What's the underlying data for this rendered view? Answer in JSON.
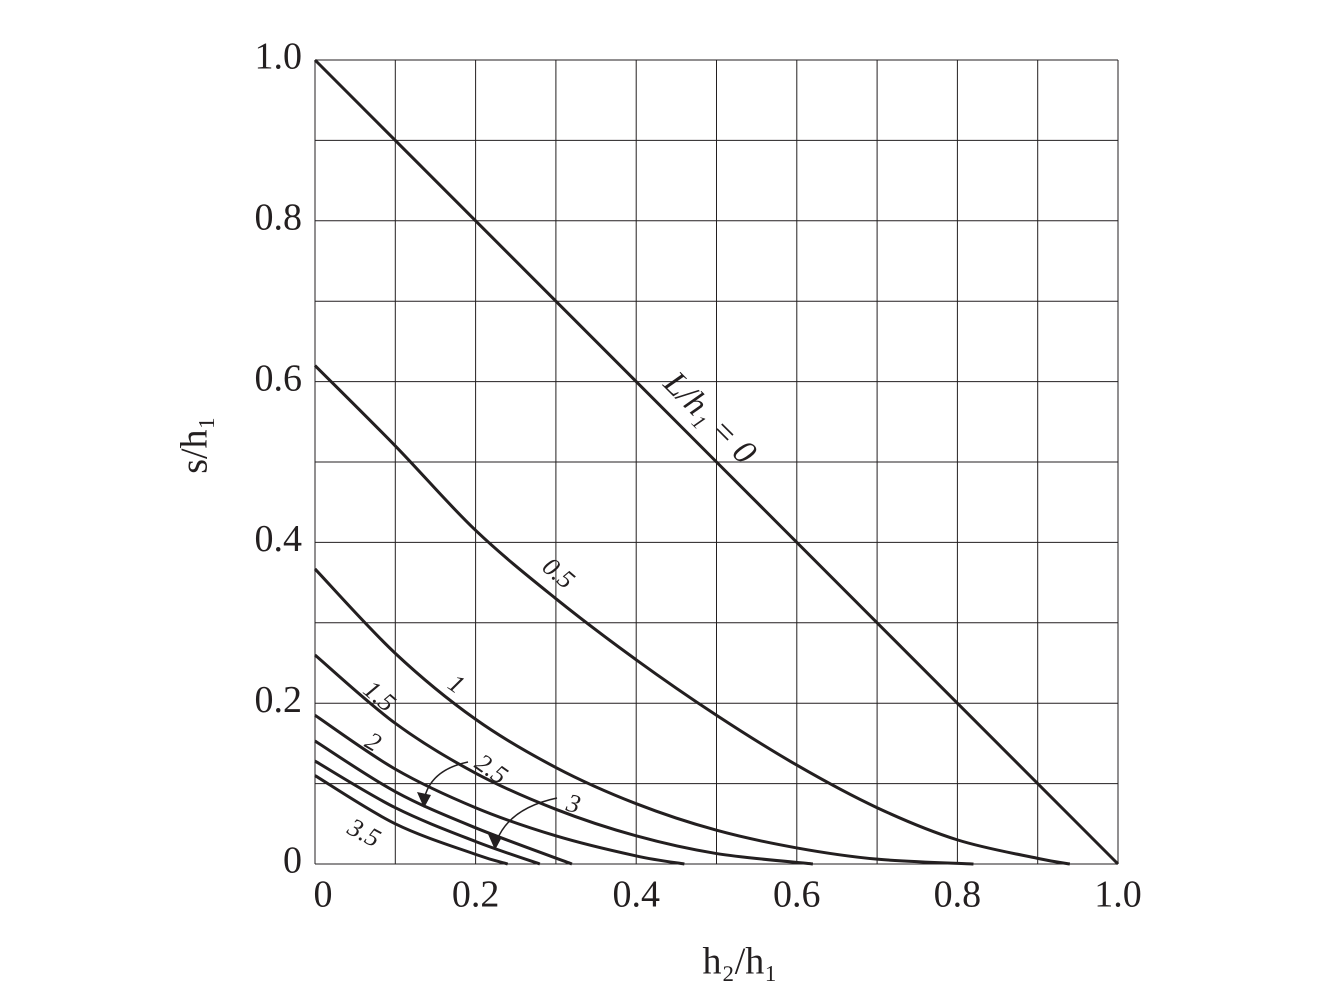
{
  "chart_data": {
    "type": "line",
    "xlabel": "h₂/h₁",
    "ylabel": "s/h₁",
    "xlim": [
      0,
      1
    ],
    "ylim": [
      0,
      1
    ],
    "xticks": [
      0,
      0.2,
      0.4,
      0.6,
      0.8,
      {
        "value": 1,
        "label": "1.0"
      }
    ],
    "yticks": [
      0,
      0.2,
      0.4,
      0.6,
      0.8,
      {
        "value": 1,
        "label": "1.0"
      }
    ],
    "minor_ticks": [
      0.1,
      0.3,
      0.5,
      0.7,
      0.9
    ],
    "grid": true,
    "color": "#231f20",
    "series": [
      {
        "name": "L/h₁ = 0",
        "x": [
          0,
          1
        ],
        "values": [
          1,
          0
        ]
      },
      {
        "name": "0.5",
        "x": [
          0,
          0.1,
          0.2,
          0.3,
          0.4,
          0.5,
          0.6,
          0.7,
          0.8,
          0.9,
          0.94
        ],
        "values": [
          0.62,
          0.52,
          0.415,
          0.33,
          0.254,
          0.185,
          0.123,
          0.07,
          0.03,
          0.007,
          0
        ]
      },
      {
        "name": "1",
        "x": [
          0,
          0.1,
          0.2,
          0.3,
          0.4,
          0.5,
          0.6,
          0.7,
          0.82
        ],
        "values": [
          0.367,
          0.262,
          0.18,
          0.12,
          0.075,
          0.042,
          0.02,
          0.006,
          0
        ]
      },
      {
        "name": "1.5",
        "x": [
          0,
          0.1,
          0.2,
          0.3,
          0.4,
          0.5,
          0.62
        ],
        "values": [
          0.26,
          0.175,
          0.113,
          0.068,
          0.035,
          0.013,
          0
        ]
      },
      {
        "name": "2",
        "x": [
          0,
          0.1,
          0.2,
          0.3,
          0.4,
          0.46
        ],
        "values": [
          0.185,
          0.118,
          0.07,
          0.035,
          0.01,
          0
        ]
      },
      {
        "name": "2.5",
        "x": [
          0,
          0.1,
          0.2,
          0.32
        ],
        "values": [
          0.153,
          0.09,
          0.045,
          0
        ]
      },
      {
        "name": "3",
        "x": [
          0,
          0.1,
          0.2,
          0.28
        ],
        "values": [
          0.128,
          0.07,
          0.028,
          0
        ]
      },
      {
        "name": "3.5",
        "x": [
          0,
          0.1,
          0.2,
          0.24
        ],
        "values": [
          0.11,
          0.05,
          0.012,
          0
        ]
      }
    ]
  }
}
